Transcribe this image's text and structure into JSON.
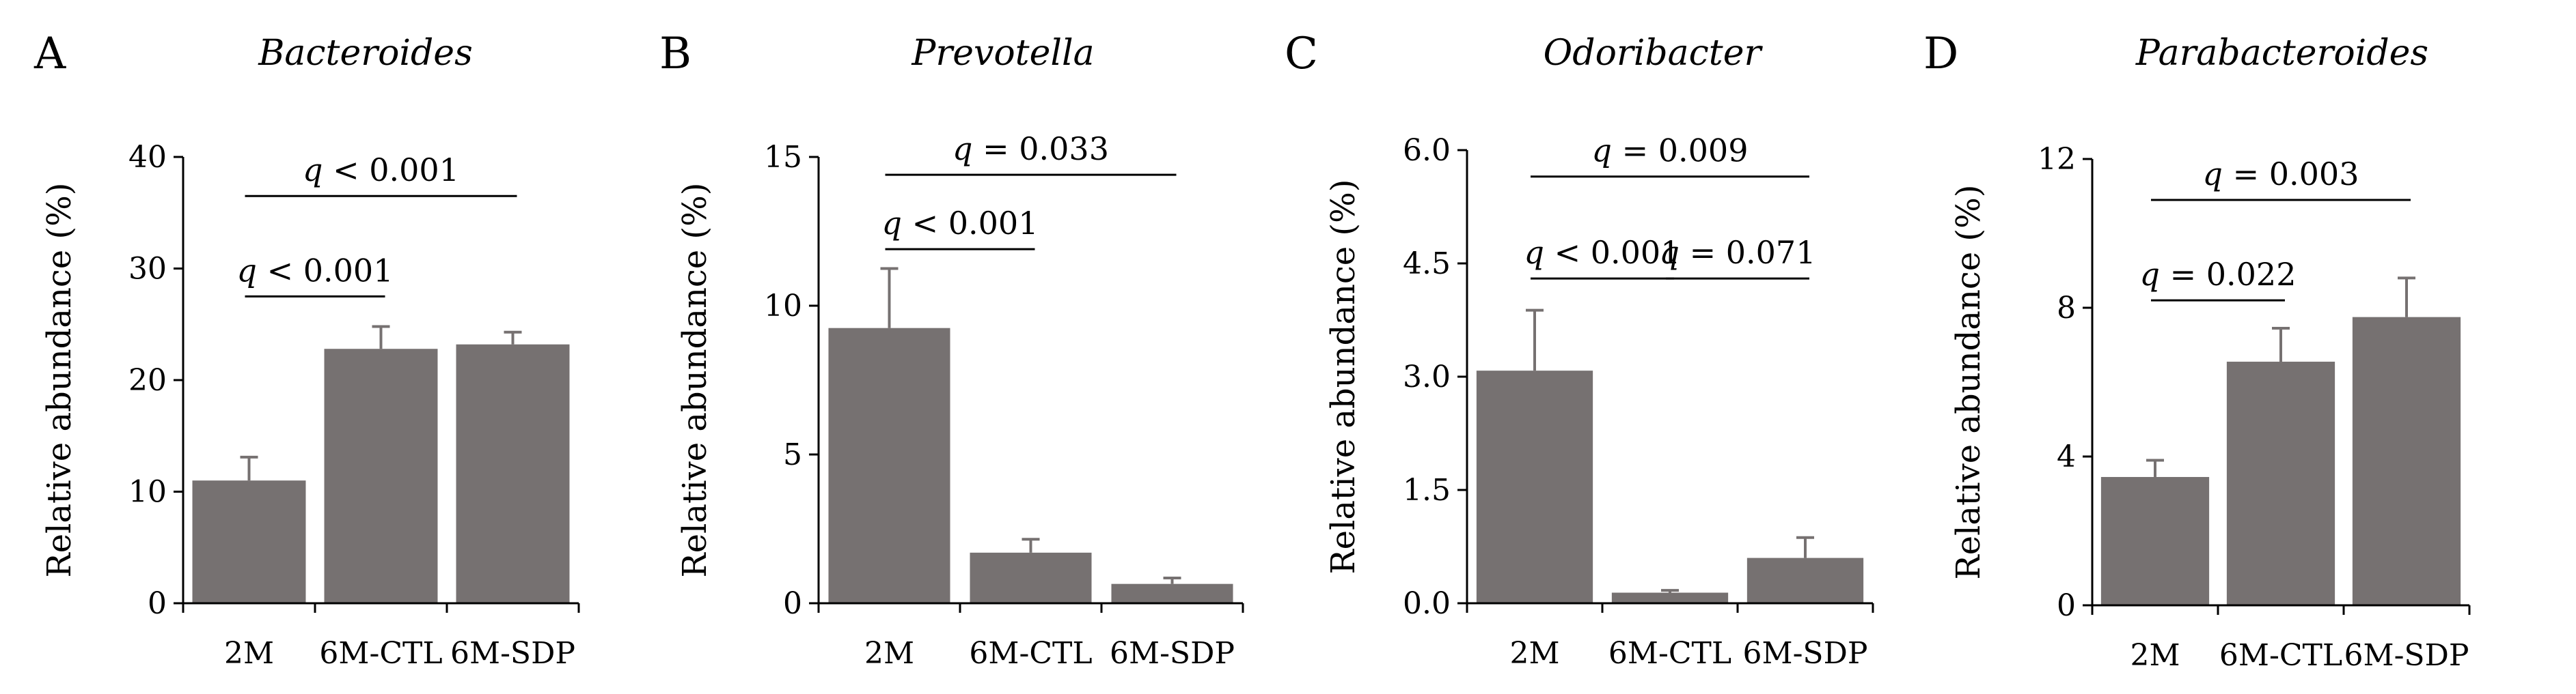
{
  "chart_data": [
    {
      "type": "bar",
      "panel": "A",
      "title": "Bacteroides",
      "ylabel": "Relative abundance (%)",
      "xlabel": "",
      "categories": [
        "2M",
        "6M-CTL",
        "6M-SDP"
      ],
      "values": [
        11.0,
        22.8,
        23.2
      ],
      "errors": [
        2.1,
        2.0,
        1.1
      ],
      "ylim": [
        0,
        40
      ],
      "yticks": [
        "0",
        "10",
        "20",
        "30",
        "40"
      ],
      "bar_color": "#767171",
      "comparisons": [
        {
          "from": 0,
          "to": 1,
          "label": "q < 0.001",
          "y": 27.5
        },
        {
          "from": 0,
          "to": 2,
          "label": "q < 0.001",
          "y": 36.5
        }
      ]
    },
    {
      "type": "bar",
      "panel": "B",
      "title": "Prevotella",
      "ylabel": "Relative abundance (%)",
      "xlabel": "",
      "categories": [
        "2M",
        "6M-CTL",
        "6M-SDP"
      ],
      "values": [
        9.25,
        1.7,
        0.65
      ],
      "errors": [
        2.0,
        0.45,
        0.2
      ],
      "ylim": [
        0,
        15
      ],
      "yticks": [
        "0",
        "5",
        "10",
        "15"
      ],
      "bar_color": "#767171",
      "comparisons": [
        {
          "from": 0,
          "to": 1,
          "label": "q < 0.001",
          "y": 11.9
        },
        {
          "from": 0,
          "to": 2,
          "label": "q = 0.033",
          "y": 14.4
        }
      ]
    },
    {
      "type": "bar",
      "panel": "C",
      "title": "Odoribacter",
      "ylabel": "Relative abundance (%)",
      "xlabel": "",
      "categories": [
        "2M",
        "6M-CTL",
        "6M-SDP"
      ],
      "values": [
        3.08,
        0.14,
        0.6
      ],
      "errors": [
        0.8,
        0.03,
        0.27
      ],
      "ylim": [
        0,
        6.0
      ],
      "yticks": [
        "0.0",
        "1.5",
        "3.0",
        "4.5",
        "6.0"
      ],
      "bar_color": "#767171",
      "comparisons": [
        {
          "from": 0,
          "to": 1,
          "label": "q < 0.001",
          "y": 4.3
        },
        {
          "from": 1,
          "to": 2,
          "label": "q = 0.071",
          "y": 4.3
        },
        {
          "from": 0,
          "to": 2,
          "label": "q = 0.009",
          "y": 5.65
        }
      ]
    },
    {
      "type": "bar",
      "panel": "D",
      "title": "Parabacteroides",
      "ylabel": "Relative abundance (%)",
      "xlabel": "",
      "categories": [
        "2M",
        "6M-CTL",
        "6M-SDP"
      ],
      "values": [
        3.45,
        6.55,
        7.75
      ],
      "errors": [
        0.45,
        0.9,
        1.05
      ],
      "ylim": [
        0,
        12
      ],
      "yticks": [
        "0",
        "4",
        "8",
        "12"
      ],
      "bar_color": "#767171",
      "comparisons": [
        {
          "from": 0,
          "to": 1,
          "label": "q = 0.022",
          "y": 8.2
        },
        {
          "from": 0,
          "to": 2,
          "label": "q = 0.003",
          "y": 10.9
        }
      ]
    }
  ]
}
